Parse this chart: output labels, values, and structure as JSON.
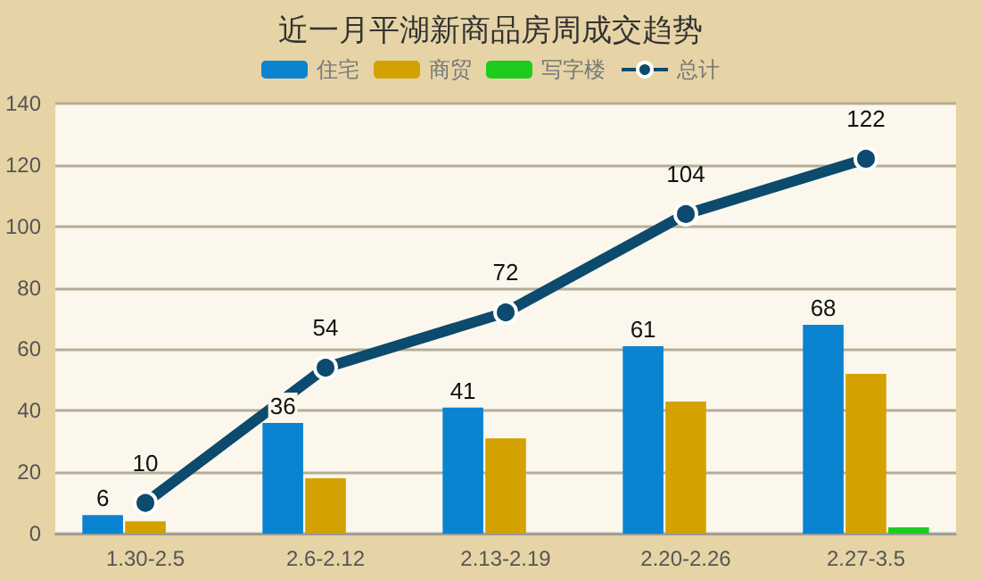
{
  "chart_data": {
    "type": "bar",
    "title": "近一月平湖新商品房周成交趋势",
    "categories": [
      "1.30-2.5",
      "2.6-2.12",
      "2.13-2.19",
      "2.20-2.26",
      "2.27-3.5"
    ],
    "series": [
      {
        "name": "住宅",
        "color": "#0a84d0",
        "values": [
          6,
          36,
          41,
          61,
          68
        ],
        "value_labels": [
          "6",
          "36",
          "41",
          "61",
          "68"
        ]
      },
      {
        "name": "商贸",
        "color": "#d4a200",
        "values": [
          4,
          18,
          31,
          43,
          52
        ]
      },
      {
        "name": "写字楼",
        "color": "#1ccc1c",
        "values": [
          0,
          0,
          0,
          0,
          2
        ]
      },
      {
        "name": "总计",
        "type": "line",
        "color": "#0c4a6e",
        "values": [
          10,
          54,
          72,
          104,
          122
        ],
        "value_labels": [
          "10",
          "54",
          "72",
          "104",
          "122"
        ]
      }
    ],
    "ylim": [
      0,
      140
    ],
    "yticks": [
      0,
      20,
      40,
      60,
      80,
      100,
      120,
      140
    ],
    "grid": "y",
    "legend": "top",
    "marker": "circle"
  }
}
